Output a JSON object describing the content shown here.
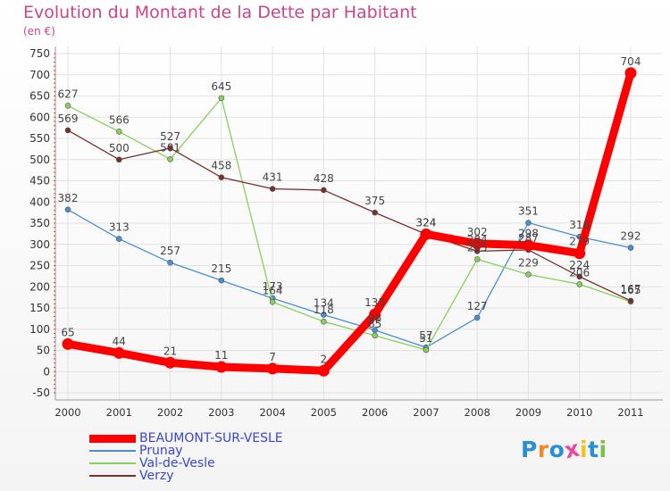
{
  "chart_data": {
    "type": "line",
    "title": "Evolution du Montant de la Dette par Habitant",
    "unit_label": "(en €)",
    "categories": [
      "2000",
      "2001",
      "2002",
      "2003",
      "2004",
      "2005",
      "2006",
      "2007",
      "2008",
      "2009",
      "2010",
      "2011"
    ],
    "ylim": [
      -50,
      750
    ],
    "yticks": [
      -50,
      0,
      50,
      100,
      150,
      200,
      250,
      300,
      350,
      400,
      450,
      500,
      550,
      600,
      650,
      700,
      750
    ],
    "grid": true,
    "legend_position": "bottom-left",
    "series": [
      {
        "name": "BEAUMONT-SUR-VESLE",
        "color": "#ff0000",
        "values": [
          65,
          44,
          21,
          11,
          7,
          2,
          135,
          324,
          302,
          298,
          279,
          704
        ],
        "labels": [
          "65",
          "44",
          "21",
          "11",
          "7",
          "2",
          "135",
          "324",
          "302",
          "298",
          "279",
          "704"
        ]
      },
      {
        "name": "Prunay",
        "color": "#4a8fd4",
        "values": [
          382,
          313,
          257,
          215,
          173,
          134,
          98,
          57,
          127,
          351,
          318,
          292
        ],
        "labels": [
          "382",
          "313",
          "257",
          "215",
          "173",
          "134",
          "98",
          "57",
          "127",
          "351",
          "318",
          "292"
        ]
      },
      {
        "name": "Val-de-Vesle",
        "color": "#88d05a",
        "values": [
          627,
          566,
          501,
          645,
          164,
          118,
          85,
          51,
          265,
          229,
          206,
          165
        ],
        "labels": [
          "627",
          "566",
          "501",
          "645",
          "164",
          "118",
          "85",
          "51",
          "265",
          "229",
          "206",
          "165"
        ]
      },
      {
        "name": "Verzy",
        "color": "#7a2f2f",
        "values": [
          569,
          500,
          527,
          458,
          431,
          428,
          375,
          324,
          284,
          287,
          224,
          167
        ],
        "labels": [
          "569",
          "500",
          "527",
          "458",
          "431",
          "428",
          "375",
          "324",
          "284",
          "287",
          "224",
          "167"
        ]
      }
    ]
  },
  "logo": {
    "letters": [
      "P",
      "r",
      "o",
      "x",
      "i",
      "t",
      "i"
    ],
    "colors": [
      "#2a8fd6",
      "#f28a1e",
      "#2a8fd6",
      "#e84b9b",
      "#f2c41e",
      "#2a8fd6",
      "#7cc242"
    ]
  }
}
